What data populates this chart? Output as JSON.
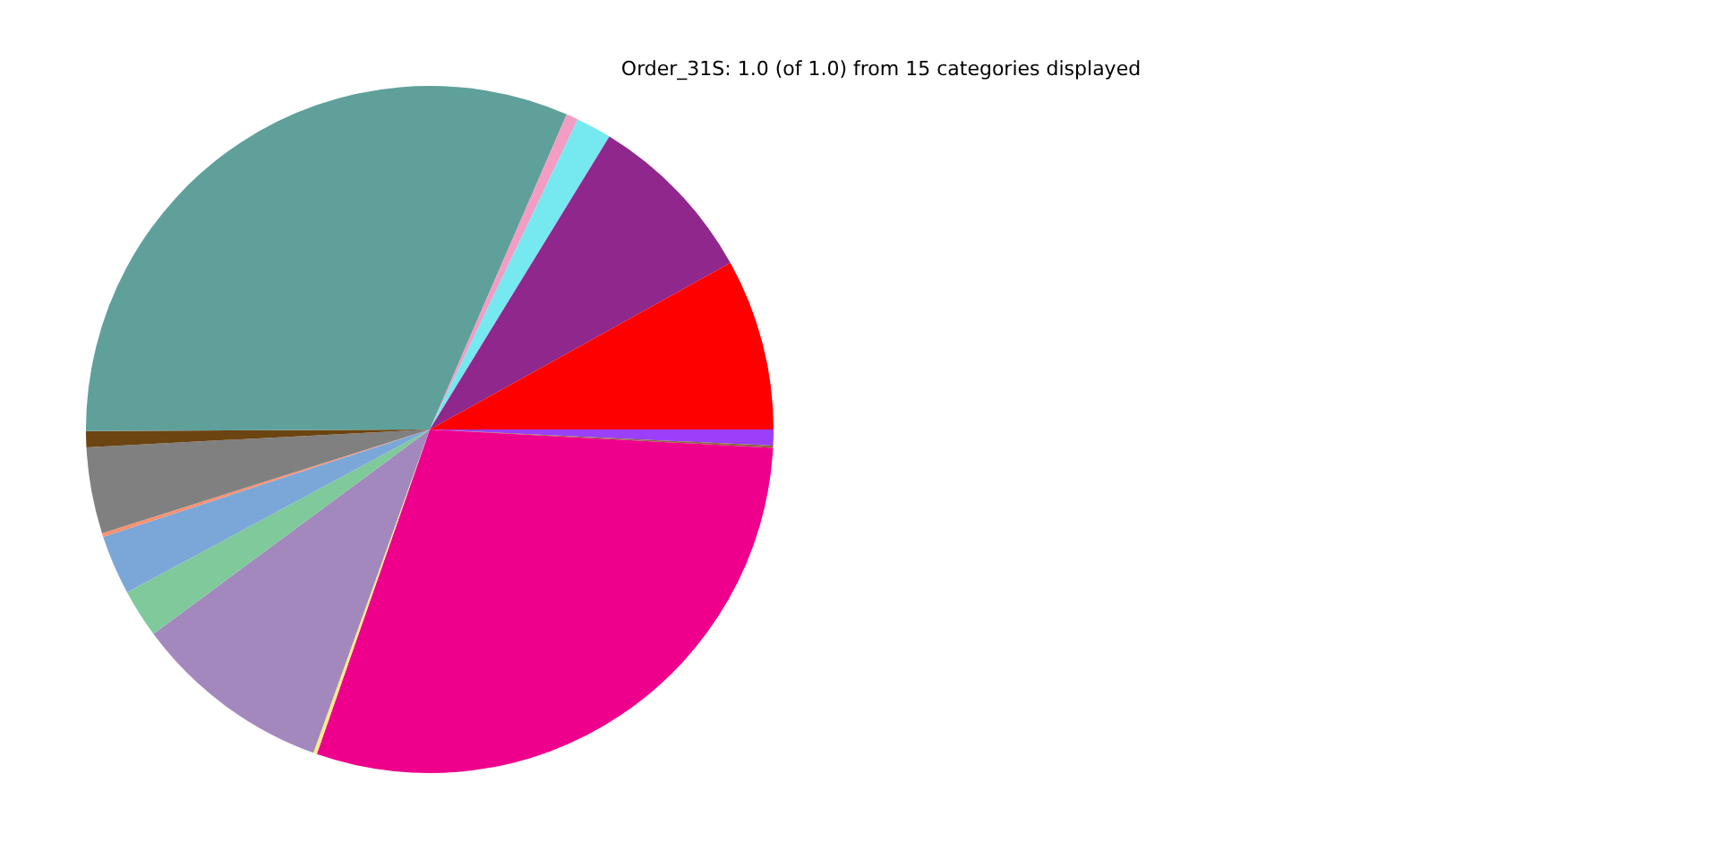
{
  "chart_data": {
    "type": "pie",
    "title": "Order_31S: 1.0 (of 1.0) from 15 categories displayed",
    "categories": [
      null,
      null,
      null,
      null,
      null,
      null,
      null,
      null,
      null,
      null,
      null,
      null,
      null,
      null,
      null
    ],
    "values": [
      8.06,
      8.19,
      1.67,
      0.56,
      31.6,
      0.75,
      4.06,
      0.17,
      2.81,
      2.28,
      9.36,
      0.17,
      29.48,
      0.1,
      0.75
    ],
    "colors": [
      "#ff0000",
      "#90278c",
      "#76e8f0",
      "#f39cc4",
      "#5fa09b",
      "#6b4411",
      "#808080",
      "#ff9070",
      "#7ba7d8",
      "#80c99b",
      "#a388bd",
      "#f5eb8a",
      "#ee008c",
      "#8b6a3a",
      "#9b3ffb"
    ],
    "legend": false
  }
}
